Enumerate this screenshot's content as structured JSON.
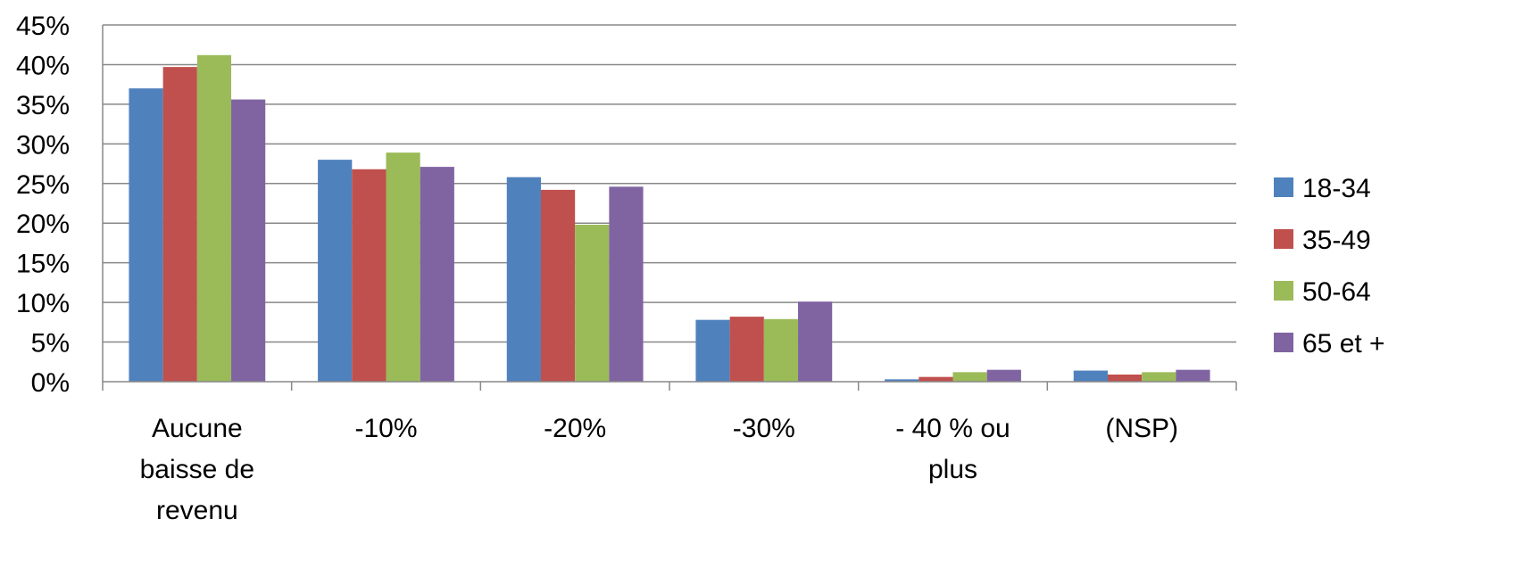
{
  "chart_data": {
    "type": "bar",
    "categories": [
      [
        "Aucune",
        "baisse de",
        "revenu"
      ],
      [
        "-10%"
      ],
      [
        "-20%"
      ],
      [
        "-30%"
      ],
      [
        "- 40 % ou",
        "plus"
      ],
      [
        "(NSP)"
      ]
    ],
    "series": [
      {
        "name": "18-34",
        "color": "#4F81BD",
        "values": [
          0.37,
          0.28,
          0.258,
          0.078,
          0.003,
          0.014
        ]
      },
      {
        "name": "35-49",
        "color": "#C0504D",
        "values": [
          0.397,
          0.268,
          0.242,
          0.082,
          0.006,
          0.009
        ]
      },
      {
        "name": "50-64",
        "color": "#9BBB59",
        "values": [
          0.412,
          0.289,
          0.198,
          0.079,
          0.012,
          0.012
        ]
      },
      {
        "name": "65 et +",
        "color": "#8064A2",
        "values": [
          0.356,
          0.271,
          0.246,
          0.101,
          0.015,
          0.015
        ]
      }
    ],
    "ylim": [
      0,
      0.45
    ],
    "yticks": [
      0,
      0.05,
      0.1,
      0.15,
      0.2,
      0.25,
      0.3,
      0.35,
      0.4,
      0.45
    ],
    "ytick_labels": [
      "0%",
      "5%",
      "10%",
      "15%",
      "20%",
      "25%",
      "30%",
      "35%",
      "40%",
      "45%"
    ],
    "title": "",
    "xlabel": "",
    "ylabel": "",
    "grid": true,
    "gridline_color": "#888888",
    "legend_position": "right"
  }
}
